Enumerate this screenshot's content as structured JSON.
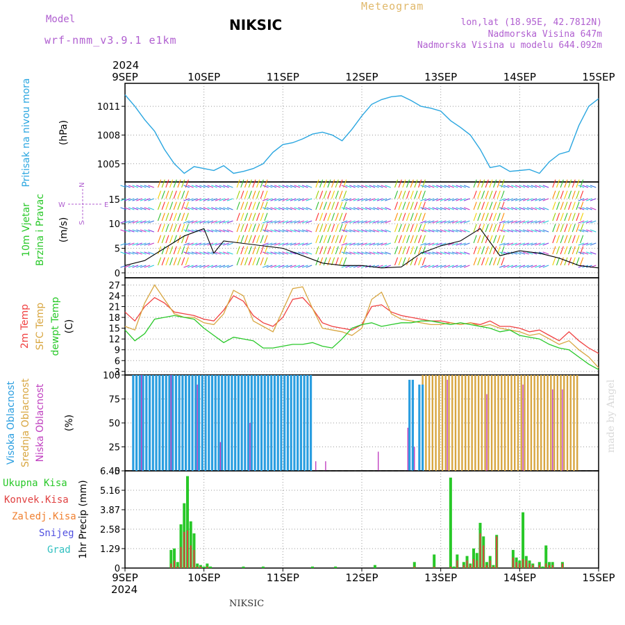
{
  "header": {
    "model_label": "Model",
    "model_version": "wrf-nmm_v3.9.1 e1km",
    "station": "NIKSIC",
    "product": "Meteogram",
    "coords": "lon,lat (18.95E, 42.7812N)",
    "elevation": "Nadmorska Visina 647m",
    "model_elevation": "Nadmorska Visina u modelu 644.092m"
  },
  "footer": {
    "station": "NIKSIC",
    "credit": "made by Angel"
  },
  "colors": {
    "pressure": "#2aa6e0",
    "temp2m": "#f04040",
    "sfc": "#d8a640",
    "dewpt": "#28c828",
    "high_cloud": "#2a9ee0",
    "mid_cloud": "#d8a640",
    "low_cloud": "#c040c0",
    "total_precip": "#28c828",
    "conv_precip": "#e04040",
    "freez_precip": "#f08030",
    "snow": "#5050e0",
    "grad": "#30c0c0"
  },
  "chart_data": [
    {
      "id": "pressure",
      "type": "line",
      "title": "Pritisak na nivou mora",
      "ylabel": "(hPa)",
      "yticks": [
        1005,
        1008,
        1011
      ],
      "ylim": [
        1003.1,
        1013.4
      ],
      "x_top_year": "2024",
      "x_top_first": "9SEP",
      "xticks": [
        "9SEP",
        "10SEP",
        "11SEP",
        "12SEP",
        "13SEP",
        "14SEP",
        "15SEP"
      ],
      "x": [
        0,
        3,
        6,
        9,
        12,
        15,
        18,
        21,
        24,
        27,
        30,
        33,
        36,
        39,
        42,
        45,
        48,
        51,
        54,
        57,
        60,
        63,
        66,
        69,
        72,
        75,
        78,
        81,
        84,
        87,
        90,
        93,
        96,
        99,
        102,
        105,
        108,
        111,
        114,
        117,
        120,
        123,
        126,
        129,
        132,
        135,
        138,
        141,
        144
      ],
      "values": [
        1012.2,
        1011.0,
        1009.6,
        1008.4,
        1006.5,
        1005.0,
        1004.0,
        1004.7,
        1004.5,
        1004.3,
        1004.8,
        1004.0,
        1004.2,
        1004.5,
        1005.0,
        1006.2,
        1007.0,
        1007.2,
        1007.6,
        1008.1,
        1008.3,
        1008.0,
        1007.4,
        1008.6,
        1010.0,
        1011.2,
        1011.7,
        1012.0,
        1012.1,
        1011.6,
        1011.0,
        1010.8,
        1010.5,
        1009.5,
        1008.8,
        1008.0,
        1006.5,
        1004.6,
        1004.8,
        1004.2,
        1004.3,
        1004.4,
        1004.0,
        1005.2,
        1006.0,
        1006.3,
        1009.0,
        1011.0,
        1011.8
      ]
    },
    {
      "id": "wind",
      "type": "line",
      "title": "10m Vjetar Brzina i Pravac",
      "ylabel": "(m/s)",
      "yticks": [
        0,
        5,
        10,
        15
      ],
      "ylim": [
        -1,
        18.5
      ],
      "compass": {
        "n": "N",
        "s": "S",
        "e": "E",
        "w": "W"
      },
      "x": [
        0,
        6,
        12,
        18,
        24,
        27,
        30,
        36,
        42,
        48,
        54,
        60,
        66,
        72,
        78,
        84,
        90,
        96,
        102,
        108,
        114,
        120,
        126,
        132,
        138,
        144
      ],
      "values": [
        1.5,
        2.5,
        5.0,
        7.5,
        9.0,
        4.0,
        6.5,
        6.0,
        5.5,
        5.0,
        3.5,
        2.0,
        1.5,
        1.5,
        1.0,
        1.2,
        4.0,
        5.5,
        6.5,
        9.0,
        3.5,
        4.5,
        4.0,
        3.0,
        1.5,
        1.0
      ]
    },
    {
      "id": "temperature",
      "type": "line",
      "title": "2m Temp / SFC Temp / dewpt Temp",
      "ylabel": "(C)",
      "yticks": [
        3,
        6,
        9,
        12,
        15,
        18,
        21,
        24,
        27
      ],
      "ylim": [
        2,
        29
      ],
      "x": [
        0,
        3,
        6,
        9,
        12,
        15,
        18,
        21,
        24,
        27,
        30,
        33,
        36,
        39,
        42,
        45,
        48,
        51,
        54,
        57,
        60,
        63,
        66,
        69,
        72,
        75,
        78,
        81,
        84,
        87,
        90,
        93,
        96,
        99,
        102,
        105,
        108,
        111,
        114,
        117,
        120,
        123,
        126,
        129,
        132,
        135,
        138,
        141,
        144
      ],
      "series": [
        {
          "name": "2m Temp",
          "values": [
            19.5,
            17.0,
            21.0,
            23.5,
            22.0,
            19.5,
            19.0,
            18.5,
            17.5,
            17.0,
            20.0,
            24.0,
            22.5,
            18.5,
            16.5,
            15.5,
            18.0,
            23.0,
            23.5,
            20.5,
            16.5,
            15.5,
            15.0,
            14.5,
            16.0,
            21.0,
            21.5,
            19.5,
            18.5,
            18.0,
            17.5,
            17.0,
            17.0,
            16.5,
            16.0,
            16.5,
            16.0,
            17.0,
            15.5,
            15.5,
            15.0,
            14.0,
            14.5,
            13.0,
            11.5,
            14.0,
            11.5,
            9.5,
            8.0
          ]
        },
        {
          "name": "SFC Temp",
          "values": [
            15.5,
            14.5,
            22.0,
            27.0,
            23.0,
            19.0,
            18.0,
            18.0,
            16.5,
            16.0,
            19.0,
            25.5,
            24.0,
            17.0,
            15.5,
            14.0,
            20.0,
            26.0,
            26.5,
            20.5,
            15.0,
            14.5,
            14.0,
            13.0,
            15.0,
            23.0,
            25.0,
            19.0,
            17.5,
            17.0,
            16.5,
            16.0,
            16.0,
            16.5,
            16.0,
            16.5,
            15.5,
            16.0,
            15.0,
            14.5,
            14.0,
            13.0,
            13.5,
            12.0,
            10.5,
            11.5,
            9.0,
            7.0,
            4.0
          ]
        },
        {
          "name": "dewpt Temp",
          "values": [
            14.5,
            11.5,
            13.5,
            17.5,
            18.0,
            18.5,
            18.0,
            17.5,
            15.0,
            13.0,
            11.0,
            12.5,
            12.0,
            11.5,
            9.5,
            9.5,
            10.0,
            10.5,
            10.5,
            11.0,
            10.0,
            9.5,
            12.0,
            15.0,
            16.0,
            16.5,
            15.5,
            16.0,
            16.5,
            16.5,
            17.0,
            17.0,
            16.5,
            16.0,
            16.5,
            16.0,
            15.5,
            15.0,
            14.0,
            14.5,
            13.0,
            12.5,
            12.0,
            10.5,
            9.5,
            9.0,
            7.0,
            5.0,
            3.5
          ]
        }
      ]
    },
    {
      "id": "clouds",
      "type": "bar",
      "title": "Visoka Oblacnost / Srednja Oblacnost / Niska Oblacnost",
      "ylabel": "(%)",
      "yticks": [
        0,
        25,
        50,
        75,
        100
      ],
      "ylim": [
        0,
        100
      ],
      "series": [
        {
          "name": "Visoka Oblacnost",
          "ranges": [
            [
              2.5,
              56.5,
              100
            ],
            [
              86.5,
              87.5,
              95
            ],
            [
              89.5,
              90.5,
              90
            ]
          ]
        },
        {
          "name": "Srednja Oblacnost",
          "ranges": [
            [
              3.5,
              37.5,
              100
            ],
            [
              44.5,
              47.5,
              85
            ],
            [
              90.5,
              137.5,
              100
            ]
          ]
        },
        {
          "name": "Niska Oblacnost",
          "spikes": [
            [
              5,
              100
            ],
            [
              14,
              100
            ],
            [
              22,
              90
            ],
            [
              29,
              30
            ],
            [
              38,
              50
            ],
            [
              58,
              10
            ],
            [
              61,
              10
            ],
            [
              77,
              20
            ],
            [
              86,
              45
            ],
            [
              88,
              25
            ],
            [
              98,
              95
            ],
            [
              110,
              80
            ],
            [
              121,
              90
            ],
            [
              130,
              85
            ],
            [
              133,
              85
            ]
          ]
        }
      ]
    },
    {
      "id": "precip",
      "type": "bar",
      "title": "1hr Precip",
      "ylabel": "(mm)",
      "yticks": [
        0,
        1.29,
        2.58,
        3.87,
        5.16,
        6.45
      ],
      "ylim": [
        0,
        6.45
      ],
      "xticks_bottom": [
        "9SEP",
        "10SEP",
        "11SEP",
        "12SEP",
        "13SEP",
        "14SEP",
        "15SEP"
      ],
      "x_bottom_year": "2024",
      "legend": [
        "Ukupna Kisa",
        "Konvek.Kisa",
        "Zaledj.Kisa",
        "Snijeg",
        "Grad"
      ],
      "x": [
        14,
        15,
        16,
        17,
        18,
        19,
        20,
        21,
        22,
        23,
        24,
        25,
        26,
        36,
        42,
        57,
        64,
        76,
        88,
        94,
        99,
        100,
        101,
        103,
        104,
        105,
        106,
        107,
        108,
        109,
        110,
        111,
        112,
        113,
        118,
        119,
        120,
        121,
        122,
        123,
        124,
        126,
        127,
        128,
        129,
        130,
        133
      ],
      "series": [
        {
          "name": "Ukupna Kisa",
          "values": [
            1.2,
            1.3,
            0.4,
            2.9,
            4.3,
            6.1,
            3.1,
            2.3,
            0.3,
            0.2,
            0.1,
            0.3,
            0.1,
            0.1,
            0.1,
            0.1,
            0.1,
            0.2,
            0.4,
            0.9,
            6.0,
            0.1,
            0.9,
            0.4,
            0.8,
            0.3,
            1.3,
            1.0,
            3.0,
            2.1,
            0.4,
            0.8,
            0.2,
            2.2,
            1.2,
            0.7,
            0.5,
            3.7,
            0.8,
            0.5,
            0.3,
            0.4,
            0.1,
            1.5,
            0.4,
            0.4,
            0.4
          ]
        },
        {
          "name": "Konvek.Kisa",
          "values": [
            0.3,
            0.5,
            0.1,
            1.4,
            2.4,
            2.5,
            1.5,
            1.2,
            0.1,
            0.1,
            0,
            0.1,
            0,
            0,
            0,
            0,
            0,
            0,
            0.1,
            0.1,
            0.1,
            0,
            0.5,
            0.2,
            0.5,
            0.2,
            0.6,
            0.5,
            2.3,
            1.5,
            0.2,
            0.5,
            0.1,
            2.1,
            0.7,
            0.4,
            0.3,
            0.6,
            0.5,
            0.3,
            0.2,
            0.2,
            0,
            0.3,
            0.2,
            0.2,
            0.3
          ]
        }
      ]
    }
  ]
}
